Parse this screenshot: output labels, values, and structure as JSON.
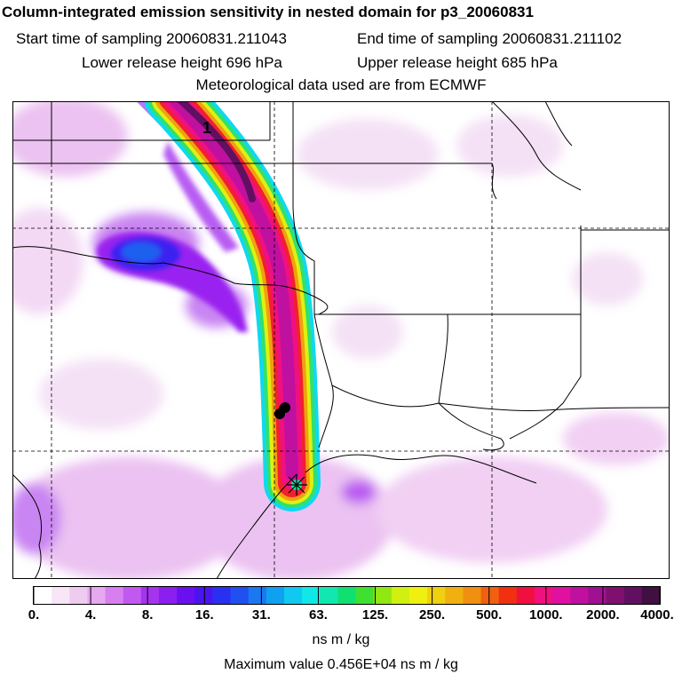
{
  "header": {
    "title": "Column-integrated emission sensitivity in nested domain for p3_20060831",
    "start_time": "Start time of sampling 20060831.211043",
    "end_time": "End time of sampling 20060831.211102",
    "lower_release": "Lower release height  696 hPa",
    "upper_release": "Upper release height  685 hPa",
    "met_data": "Meteorological data used are from ECMWF"
  },
  "map": {
    "plume_label": "1",
    "release_marker": "release-star"
  },
  "colorbar": {
    "labels": [
      "0.",
      "4.",
      "8.",
      "16.",
      "31.",
      "63.",
      "125.",
      "250.",
      "500.",
      "1000.",
      "2000.",
      "4000."
    ],
    "colors": [
      "#ffffff",
      "#f7e6f7",
      "#efccef",
      "#e6a8ef",
      "#d77ff0",
      "#c159f0",
      "#a633ef",
      "#8a1ff0",
      "#6a10f0",
      "#4a14f0",
      "#2a30f0",
      "#2050f0",
      "#1a78f0",
      "#10a0f0",
      "#10c8f0",
      "#10e8e8",
      "#10e8b0",
      "#10e070",
      "#40e030",
      "#90e810",
      "#d0f010",
      "#f0f010",
      "#f0d010",
      "#f0b010",
      "#f09010",
      "#f06010",
      "#f03010",
      "#f01040",
      "#f01080",
      "#e010a0",
      "#c010a0",
      "#a01090",
      "#801070",
      "#601060",
      "#401040"
    ],
    "units": "ns m / kg"
  },
  "footer": {
    "max_value": "Maximum value  0.456E+04 ns m / kg"
  }
}
